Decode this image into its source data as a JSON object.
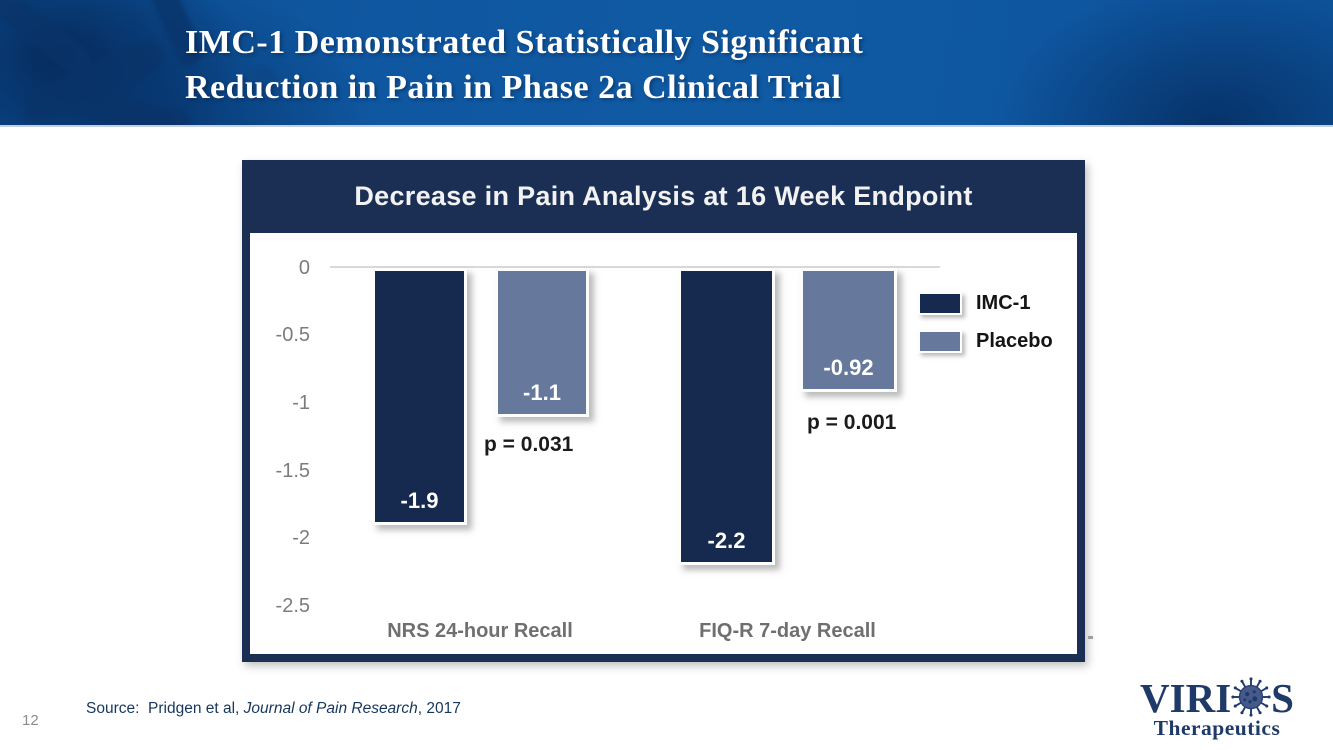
{
  "slide": {
    "title": {
      "line1": "IMC-1 Demonstrated Statistically Significant",
      "line2": "Reduction in Pain in Phase 2a Clinical Trial"
    }
  },
  "chart_data": {
    "type": "bar",
    "title": "Decrease in Pain Analysis at 16 Week Endpoint",
    "categories": [
      "NRS 24-hour Recall",
      "FIQ-R 7-day Recall"
    ],
    "series": [
      {
        "name": "IMC-1",
        "color": "#16294e",
        "values": [
          -1.9,
          -2.2
        ],
        "display_values": [
          "-1.9",
          "-2.2"
        ]
      },
      {
        "name": "Placebo",
        "color": "#66789c",
        "values": [
          -1.1,
          -0.92
        ],
        "display_values": [
          "-1.1",
          "-0.92"
        ]
      }
    ],
    "p_values": [
      "p = 0.031",
      "p = 0.001"
    ],
    "y_ticks": [
      "0",
      "-0.5",
      "-1",
      "-1.5",
      "-2",
      "-2.5"
    ],
    "ylim": [
      -2.5,
      0
    ],
    "xlabel": "",
    "ylabel": "",
    "grid": "zero-line-only",
    "legend_position": "right"
  },
  "footer": {
    "source_prefix": "Source:  Pridgen et al, ",
    "source_journal": "Journal of Pain Research",
    "source_suffix": ", 2017",
    "page_number": "12"
  },
  "logo": {
    "word_left": "VIRI",
    "word_right": "S",
    "subtitle": "Therapeutics"
  },
  "colors": {
    "banner_blue": "#0f57a0",
    "chart_navy": "#1b2f55",
    "imc1_bar": "#16294e",
    "placebo_bar": "#66789c",
    "tick_gray": "#7c7c7c",
    "logo_navy": "#1f3a68"
  }
}
